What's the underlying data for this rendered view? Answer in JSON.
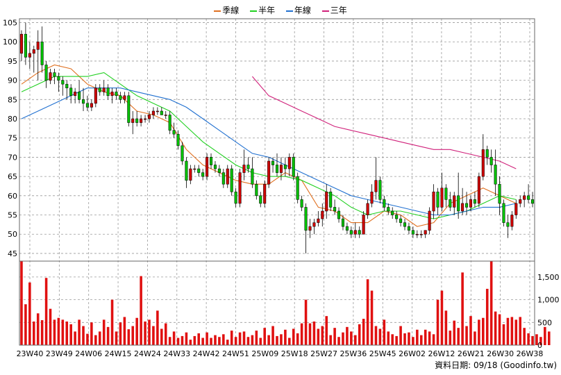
{
  "legend": {
    "quarter": "季線",
    "half": "半年",
    "year": "年線",
    "three": "三年"
  },
  "footer": {
    "label": "資料日期: 09/18",
    "source": "(Goodinfo.tw)"
  },
  "colors": {
    "quarter": "#e07020",
    "half": "#20d020",
    "year": "#2070d0",
    "three": "#d0207a",
    "candle_up": "#d00000",
    "candle_down": "#00c000",
    "volume": "#e01010",
    "grid": "#999999"
  },
  "chart_data": [
    {
      "type": "candlestick",
      "y_ticks": [
        105,
        100,
        95,
        90,
        85,
        80,
        75,
        70,
        65,
        60,
        55,
        50,
        45
      ],
      "ylim": [
        43,
        106
      ],
      "x_ticks": [
        "23W40",
        "23W49",
        "24W06",
        "24W15",
        "24W24",
        "24W33",
        "24W42",
        "24W51",
        "25W09",
        "25W18",
        "25W27",
        "25W36",
        "25W45",
        "26W02",
        "26W12",
        "26W21",
        "26W30",
        "26W38"
      ],
      "candles": [
        [
          97,
          103,
          95,
          102
        ],
        [
          102,
          105,
          94,
          96
        ],
        [
          96,
          100,
          93,
          97
        ],
        [
          97,
          99,
          92,
          98
        ],
        [
          98,
          103,
          90,
          100
        ],
        [
          100,
          104,
          92,
          94
        ],
        [
          94,
          95,
          88,
          90
        ],
        [
          90,
          93,
          89,
          92
        ],
        [
          92,
          93,
          89,
          91
        ],
        [
          91,
          92,
          87,
          90
        ],
        [
          90,
          91,
          86,
          89
        ],
        [
          89,
          90,
          85,
          88
        ],
        [
          88,
          89,
          84,
          86
        ],
        [
          86,
          88,
          84,
          87
        ],
        [
          87,
          90,
          84,
          85
        ],
        [
          85,
          88,
          82,
          84
        ],
        [
          84,
          86,
          82,
          83
        ],
        [
          83,
          85,
          82,
          84
        ],
        [
          84,
          89,
          83,
          88
        ],
        [
          88,
          89,
          86,
          87
        ],
        [
          87,
          90,
          86,
          88
        ],
        [
          88,
          89,
          85,
          86
        ],
        [
          86,
          88,
          84,
          87
        ],
        [
          87,
          88,
          85,
          86
        ],
        [
          86,
          87,
          84,
          85
        ],
        [
          85,
          87,
          84,
          86
        ],
        [
          86,
          87,
          78,
          79
        ],
        [
          79,
          82,
          76,
          80
        ],
        [
          80,
          82,
          78,
          79
        ],
        [
          79,
          81,
          78,
          80
        ],
        [
          80,
          81,
          79,
          80
        ],
        [
          80,
          82,
          79,
          81
        ],
        [
          81,
          83,
          80,
          82
        ],
        [
          82,
          83,
          81,
          82
        ],
        [
          82,
          83,
          81,
          81
        ],
        [
          81,
          82,
          80,
          81
        ],
        [
          81,
          82,
          76,
          77
        ],
        [
          77,
          79,
          75,
          76
        ],
        [
          76,
          77,
          72,
          73
        ],
        [
          73,
          74,
          68,
          69
        ],
        [
          69,
          70,
          62,
          64
        ],
        [
          64,
          68,
          63,
          67
        ],
        [
          67,
          68,
          66,
          67
        ],
        [
          67,
          68,
          65,
          66
        ],
        [
          66,
          67,
          64,
          65
        ],
        [
          65,
          71,
          64,
          70
        ],
        [
          70,
          71,
          67,
          68
        ],
        [
          68,
          69,
          66,
          67
        ],
        [
          67,
          68,
          65,
          66
        ],
        [
          66,
          67,
          62,
          63
        ],
        [
          63,
          68,
          62,
          67
        ],
        [
          67,
          68,
          60,
          61
        ],
        [
          61,
          62,
          57,
          58
        ],
        [
          58,
          67,
          57,
          66
        ],
        [
          66,
          72,
          64,
          68
        ],
        [
          68,
          70,
          66,
          67
        ],
        [
          67,
          70,
          62,
          63
        ],
        [
          63,
          64,
          59,
          60
        ],
        [
          60,
          61,
          57,
          58
        ],
        [
          58,
          64,
          57,
          63
        ],
        [
          63,
          70,
          62,
          69
        ],
        [
          69,
          70,
          66,
          68
        ],
        [
          68,
          71,
          65,
          66
        ],
        [
          66,
          70,
          64,
          68
        ],
        [
          68,
          70,
          65,
          67
        ],
        [
          67,
          71,
          65,
          70
        ],
        [
          70,
          71,
          64,
          65
        ],
        [
          65,
          66,
          58,
          59
        ],
        [
          59,
          60,
          56,
          57
        ],
        [
          57,
          58,
          45,
          51
        ],
        [
          51,
          54,
          49,
          52
        ],
        [
          52,
          54,
          50,
          53
        ],
        [
          53,
          56,
          52,
          54
        ],
        [
          54,
          58,
          52,
          56
        ],
        [
          56,
          63,
          54,
          61
        ],
        [
          61,
          62,
          56,
          57
        ],
        [
          57,
          59,
          55,
          56
        ],
        [
          56,
          57,
          53,
          54
        ],
        [
          54,
          55,
          51,
          52
        ],
        [
          52,
          53,
          50,
          51
        ],
        [
          51,
          52,
          49,
          50
        ],
        [
          50,
          53,
          49,
          51
        ],
        [
          51,
          52,
          49,
          50
        ],
        [
          50,
          56,
          50,
          55
        ],
        [
          55,
          59,
          54,
          58
        ],
        [
          58,
          63,
          57,
          61
        ],
        [
          61,
          70,
          59,
          64
        ],
        [
          64,
          65,
          58,
          59
        ],
        [
          59,
          60,
          56,
          57
        ],
        [
          57,
          58,
          55,
          56
        ],
        [
          56,
          57,
          54,
          55
        ],
        [
          55,
          56,
          53,
          54
        ],
        [
          54,
          55,
          52,
          53
        ],
        [
          53,
          54,
          51,
          52
        ],
        [
          52,
          53,
          50,
          51
        ],
        [
          51,
          52,
          49,
          50
        ],
        [
          50,
          51,
          49,
          50
        ],
        [
          50,
          51,
          49,
          50
        ],
        [
          50,
          51,
          49,
          51
        ],
        [
          51,
          57,
          50,
          56
        ],
        [
          56,
          63,
          54,
          61
        ],
        [
          61,
          62,
          55,
          57
        ],
        [
          57,
          66,
          56,
          62
        ],
        [
          62,
          63,
          57,
          59
        ],
        [
          59,
          61,
          56,
          57
        ],
        [
          57,
          61,
          55,
          60
        ],
        [
          60,
          66,
          54,
          56
        ],
        [
          56,
          62,
          55,
          58
        ],
        [
          58,
          61,
          55,
          57
        ],
        [
          57,
          60,
          56,
          59
        ],
        [
          59,
          61,
          57,
          58
        ],
        [
          58,
          66,
          57,
          65
        ],
        [
          65,
          76,
          64,
          72
        ],
        [
          72,
          73,
          68,
          70
        ],
        [
          70,
          72,
          66,
          68
        ],
        [
          68,
          72,
          60,
          63
        ],
        [
          63,
          65,
          55,
          58
        ],
        [
          58,
          59,
          52,
          53
        ],
        [
          53,
          55,
          49,
          52
        ],
        [
          52,
          56,
          51,
          55
        ],
        [
          55,
          59,
          54,
          58
        ],
        [
          58,
          60,
          57,
          59
        ],
        [
          59,
          61,
          57,
          60
        ],
        [
          60,
          63,
          58,
          59
        ],
        [
          59,
          61,
          57,
          58
        ]
      ],
      "volume_ticks": [
        1500,
        1000,
        500,
        0
      ],
      "volume_ylim": [
        0,
        1850
      ],
      "volumes": [
        1850,
        900,
        1380,
        520,
        700,
        550,
        1480,
        800,
        560,
        600,
        560,
        520,
        460,
        300,
        560,
        420,
        250,
        500,
        220,
        300,
        560,
        400,
        1000,
        300,
        500,
        620,
        350,
        420,
        600,
        1520,
        520,
        560,
        420,
        760,
        360,
        480,
        180,
        300,
        160,
        200,
        280,
        120,
        200,
        260,
        160,
        280,
        160,
        220,
        180,
        240,
        120,
        320,
        180,
        280,
        300,
        180,
        220,
        320,
        160,
        380,
        220,
        420,
        200,
        240,
        340,
        160,
        360,
        260,
        480,
        1000,
        480,
        520,
        360,
        420,
        640,
        220,
        380,
        180,
        280,
        400,
        300,
        220,
        460,
        580,
        1450,
        1200,
        420,
        360,
        560,
        300,
        240,
        200,
        420,
        260,
        280,
        180,
        340,
        220,
        340,
        300,
        240,
        1000,
        1200,
        760,
        320,
        540,
        380,
        1600,
        420,
        640,
        300,
        560,
        600,
        1240,
        1850,
        740,
        680,
        460,
        600,
        620,
        560,
        620,
        380,
        260,
        200,
        240,
        180,
        400,
        300
      ],
      "series": [
        {
          "name": "季線",
          "values": [
            [
              0,
              89
            ],
            [
              4,
              92
            ],
            [
              8,
              94
            ],
            [
              12,
              93
            ],
            [
              16,
              89
            ],
            [
              20,
              87
            ],
            [
              24,
              86
            ],
            [
              28,
              82
            ],
            [
              32,
              81
            ],
            [
              36,
              79
            ],
            [
              40,
              72
            ],
            [
              44,
              68
            ],
            [
              48,
              66
            ],
            [
              52,
              64
            ],
            [
              56,
              63
            ],
            [
              60,
              63
            ],
            [
              64,
              66
            ],
            [
              68,
              64
            ],
            [
              72,
              57
            ],
            [
              76,
              56
            ],
            [
              80,
              53
            ],
            [
              84,
              53
            ],
            [
              88,
              56
            ],
            [
              92,
              55
            ],
            [
              96,
              52
            ],
            [
              100,
              53
            ],
            [
              104,
              58
            ],
            [
              108,
              60
            ],
            [
              112,
              62
            ],
            [
              116,
              60
            ],
            [
              120,
              58
            ]
          ]
        },
        {
          "name": "半年",
          "values": [
            [
              0,
              87
            ],
            [
              4,
              89
            ],
            [
              8,
              91
            ],
            [
              12,
              91
            ],
            [
              16,
              91
            ],
            [
              20,
              92
            ],
            [
              24,
              89
            ],
            [
              28,
              86
            ],
            [
              32,
              84
            ],
            [
              36,
              82
            ],
            [
              40,
              78
            ],
            [
              44,
              74
            ],
            [
              48,
              71
            ],
            [
              52,
              68
            ],
            [
              56,
              66
            ],
            [
              60,
              65
            ],
            [
              64,
              65
            ],
            [
              68,
              64
            ],
            [
              72,
              62
            ],
            [
              76,
              60
            ],
            [
              80,
              57
            ],
            [
              84,
              55
            ],
            [
              88,
              56
            ],
            [
              92,
              56
            ],
            [
              96,
              55
            ],
            [
              100,
              54
            ],
            [
              104,
              55
            ],
            [
              108,
              56
            ],
            [
              112,
              58
            ],
            [
              116,
              60
            ],
            [
              120,
              59
            ]
          ]
        },
        {
          "name": "年線",
          "values": [
            [
              0,
              80
            ],
            [
              4,
              82
            ],
            [
              8,
              84
            ],
            [
              12,
              86
            ],
            [
              16,
              88
            ],
            [
              20,
              88
            ],
            [
              24,
              88
            ],
            [
              28,
              87
            ],
            [
              32,
              86
            ],
            [
              36,
              85
            ],
            [
              40,
              83
            ],
            [
              44,
              80
            ],
            [
              48,
              77
            ],
            [
              52,
              74
            ],
            [
              56,
              71
            ],
            [
              60,
              70
            ],
            [
              64,
              68
            ],
            [
              68,
              66
            ],
            [
              72,
              64
            ],
            [
              76,
              62
            ],
            [
              80,
              60
            ],
            [
              84,
              59
            ],
            [
              88,
              58
            ],
            [
              92,
              57
            ],
            [
              96,
              56
            ],
            [
              100,
              55
            ],
            [
              104,
              55
            ],
            [
              108,
              56
            ],
            [
              112,
              57
            ],
            [
              116,
              57
            ],
            [
              120,
              58
            ]
          ]
        },
        {
          "name": "三年",
          "values": [
            [
              56,
              91
            ],
            [
              60,
              86
            ],
            [
              64,
              84
            ],
            [
              68,
              82
            ],
            [
              72,
              80
            ],
            [
              76,
              78
            ],
            [
              80,
              77
            ],
            [
              84,
              76
            ],
            [
              88,
              75
            ],
            [
              92,
              74
            ],
            [
              96,
              73
            ],
            [
              100,
              72
            ],
            [
              104,
              72
            ],
            [
              108,
              71
            ],
            [
              112,
              70
            ],
            [
              116,
              69
            ],
            [
              120,
              67
            ]
          ]
        }
      ]
    }
  ]
}
